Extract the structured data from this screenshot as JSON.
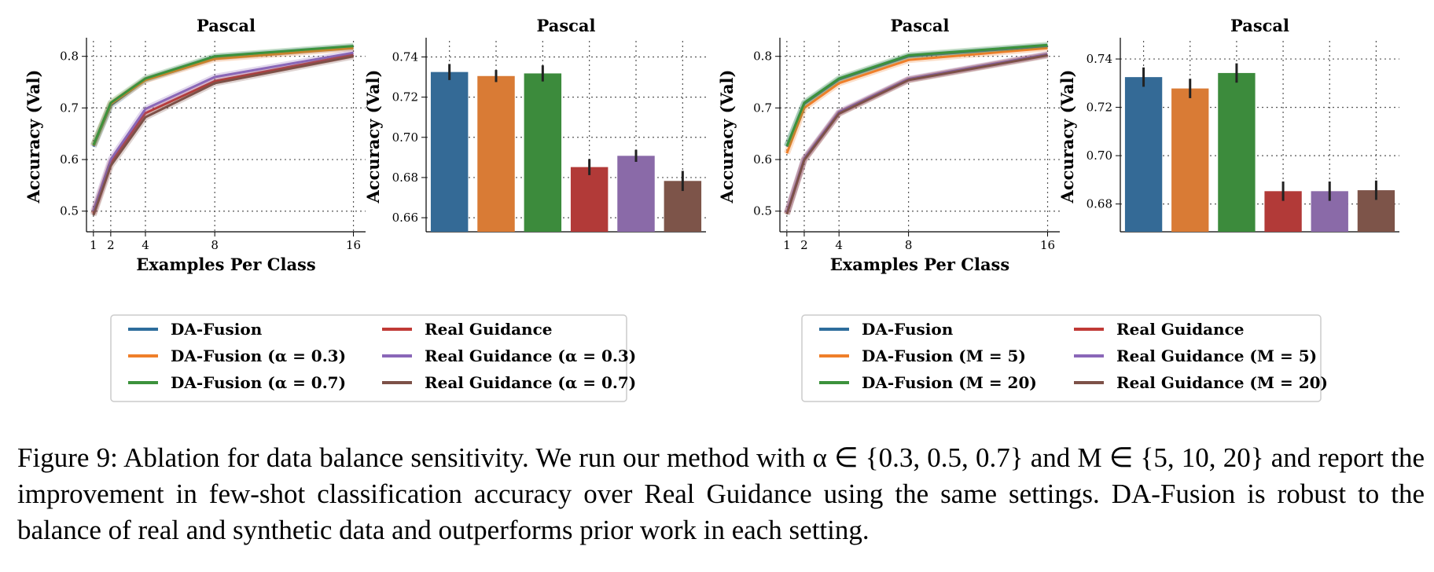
{
  "chart_data": [
    {
      "type": "line",
      "title": "Pascal",
      "xlabel": "Examples Per Class",
      "ylabel": "Accuracy (Val)",
      "x": [
        1,
        2,
        4,
        8,
        16
      ],
      "xticks": [
        "1",
        "2",
        "4",
        "8",
        "16"
      ],
      "xlim": [
        0.6,
        16.7
      ],
      "ylim": [
        0.46,
        0.83
      ],
      "yticks": [
        0.5,
        0.6,
        0.7,
        0.8
      ],
      "ytick_labels": [
        "0.5",
        "0.6",
        "0.7",
        "0.8"
      ],
      "grid": true,
      "series": [
        {
          "name": "DA-Fusion",
          "color": "#2d6d9c",
          "values": [
            0.625,
            0.705,
            0.755,
            0.798,
            0.818
          ]
        },
        {
          "name": "DA-Fusion (α = 0.3)",
          "color": "#ef7f2a",
          "values": [
            0.627,
            0.708,
            0.754,
            0.795,
            0.816
          ]
        },
        {
          "name": "DA-Fusion (α = 0.7)",
          "color": "#3c923c",
          "values": [
            0.628,
            0.71,
            0.757,
            0.8,
            0.82
          ]
        },
        {
          "name": "Real Guidance",
          "color": "#c03a36",
          "values": [
            0.495,
            0.595,
            0.69,
            0.752,
            0.803
          ]
        },
        {
          "name": "Real Guidance (α = 0.3)",
          "color": "#8a67b8",
          "values": [
            0.5,
            0.6,
            0.698,
            0.76,
            0.807
          ]
        },
        {
          "name": "Real Guidance (α = 0.7)",
          "color": "#7d5148",
          "values": [
            0.492,
            0.588,
            0.682,
            0.748,
            0.8
          ]
        }
      ]
    },
    {
      "type": "bar",
      "title": "Pascal",
      "ylabel": "Accuracy (Val)",
      "ylim": [
        0.653,
        0.748
      ],
      "yticks": [
        0.66,
        0.68,
        0.7,
        0.72,
        0.74
      ],
      "ytick_labels": [
        "0.66",
        "0.68",
        "0.70",
        "0.72",
        "0.74"
      ],
      "grid": true,
      "categories": [
        "DA-Fusion",
        "DA-Fusion (α = 0.3)",
        "DA-Fusion (α = 0.7)",
        "Real Guidance",
        "Real Guidance (α = 0.3)",
        "Real Guidance (α = 0.7)"
      ],
      "values": [
        0.7325,
        0.7305,
        0.7318,
        0.6852,
        0.6908,
        0.6783
      ],
      "errors": [
        0.004,
        0.003,
        0.004,
        0.004,
        0.003,
        0.005
      ],
      "colors": [
        "#346a96",
        "#d97b35",
        "#3c8b3c",
        "#b23a38",
        "#8a6aa8",
        "#7d5449"
      ]
    },
    {
      "type": "line",
      "title": "Pascal",
      "xlabel": "Examples Per Class",
      "ylabel": "Accuracy (Val)",
      "x": [
        1,
        2,
        4,
        8,
        16
      ],
      "xticks": [
        "1",
        "2",
        "4",
        "8",
        "16"
      ],
      "xlim": [
        0.6,
        16.7
      ],
      "ylim": [
        0.46,
        0.83
      ],
      "yticks": [
        0.5,
        0.6,
        0.7,
        0.8
      ],
      "ytick_labels": [
        "0.5",
        "0.6",
        "0.7",
        "0.8"
      ],
      "grid": true,
      "series": [
        {
          "name": "DA-Fusion",
          "color": "#2d6d9c",
          "values": [
            0.625,
            0.708,
            0.755,
            0.8,
            0.82
          ]
        },
        {
          "name": "DA-Fusion (M = 5)",
          "color": "#ef7f2a",
          "values": [
            0.612,
            0.7,
            0.748,
            0.793,
            0.816
          ]
        },
        {
          "name": "DA-Fusion (M = 20)",
          "color": "#3c923c",
          "values": [
            0.626,
            0.71,
            0.757,
            0.802,
            0.822
          ]
        },
        {
          "name": "Real Guidance",
          "color": "#c03a36",
          "values": [
            0.495,
            0.6,
            0.69,
            0.755,
            0.803
          ]
        },
        {
          "name": "Real Guidance (M = 5)",
          "color": "#8a67b8",
          "values": [
            0.497,
            0.602,
            0.692,
            0.756,
            0.804
          ]
        },
        {
          "name": "Real Guidance (M = 20)",
          "color": "#7d5148",
          "values": [
            0.494,
            0.599,
            0.689,
            0.754,
            0.802
          ]
        }
      ]
    },
    {
      "type": "bar",
      "title": "Pascal",
      "ylabel": "Accuracy (Val)",
      "ylim": [
        0.6685,
        0.7475
      ],
      "yticks": [
        0.68,
        0.7,
        0.72,
        0.74
      ],
      "ytick_labels": [
        "0.68",
        "0.70",
        "0.72",
        "0.74"
      ],
      "grid": true,
      "categories": [
        "DA-Fusion",
        "DA-Fusion (M = 5)",
        "DA-Fusion (M = 20)",
        "Real Guidance",
        "Real Guidance (M = 5)",
        "Real Guidance (M = 20)"
      ],
      "values": [
        0.7325,
        0.7278,
        0.7342,
        0.6853,
        0.6853,
        0.6857
      ],
      "errors": [
        0.004,
        0.004,
        0.004,
        0.004,
        0.004,
        0.004
      ],
      "colors": [
        "#346a96",
        "#d97b35",
        "#3c8b3c",
        "#b23a38",
        "#8a6aa8",
        "#7d5449"
      ]
    }
  ],
  "legends": [
    {
      "items": [
        {
          "label": "DA-Fusion",
          "color": "#2d6d9c"
        },
        {
          "label": "DA-Fusion (α = 0.3)",
          "color": "#ef7f2a"
        },
        {
          "label": "DA-Fusion (α = 0.7)",
          "color": "#3c923c"
        },
        {
          "label": "Real Guidance",
          "color": "#c03a36"
        },
        {
          "label": "Real Guidance (α = 0.3)",
          "color": "#8a67b8"
        },
        {
          "label": "Real Guidance (α = 0.7)",
          "color": "#7d5148"
        }
      ]
    },
    {
      "items": [
        {
          "label": "DA-Fusion",
          "color": "#2d6d9c"
        },
        {
          "label": "DA-Fusion (M = 5)",
          "color": "#ef7f2a"
        },
        {
          "label": "DA-Fusion (M = 20)",
          "color": "#3c923c"
        },
        {
          "label": "Real Guidance",
          "color": "#c03a36"
        },
        {
          "label": "Real Guidance (M = 5)",
          "color": "#8a67b8"
        },
        {
          "label": "Real Guidance (M = 20)",
          "color": "#7d5148"
        }
      ]
    }
  ],
  "caption": {
    "text": "Figure 9:  Ablation for data balance sensitivity.  We run our method with α ∈ {0.3, 0.5, 0.7} and M ∈ {5, 10, 20} and report the improvement in few-shot classification accuracy over Real Guidance using the same settings. DA-Fusion is robust to the balance of real and synthetic data and outperforms prior work in each setting."
  }
}
